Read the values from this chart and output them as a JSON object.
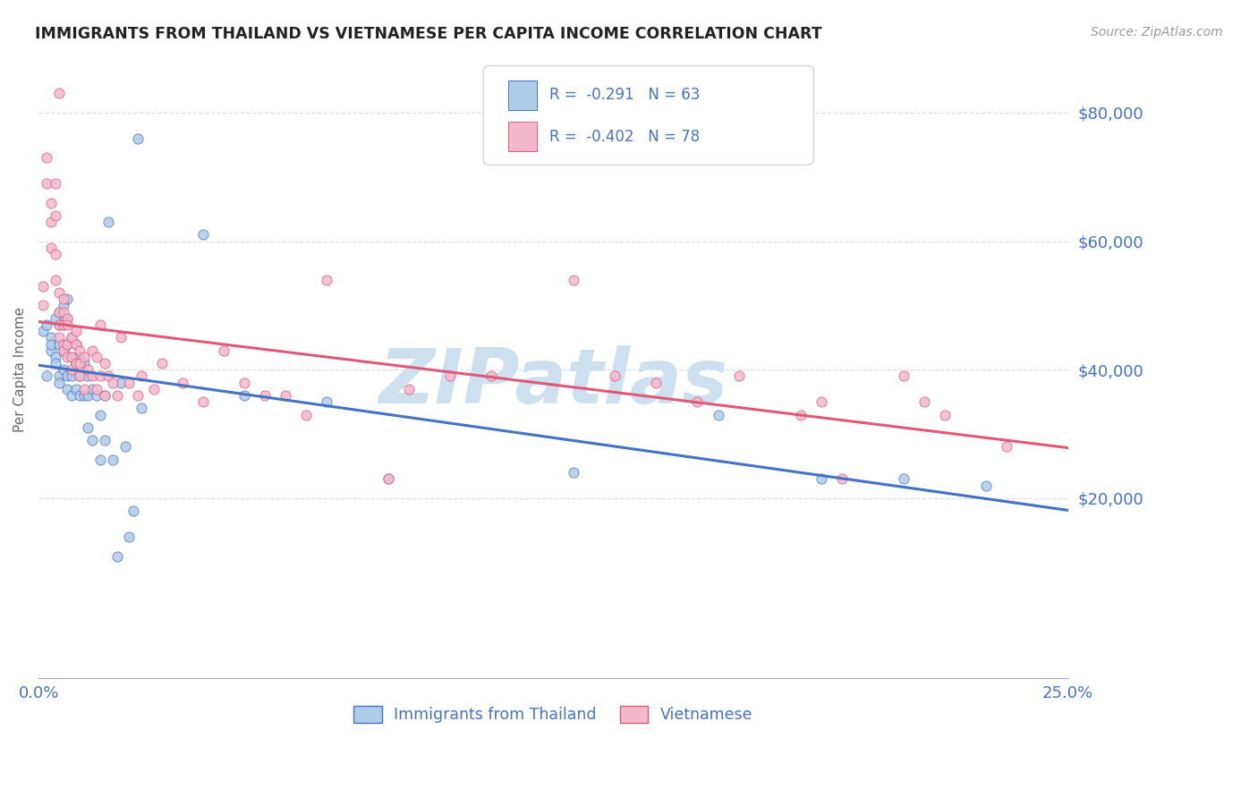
{
  "title": "IMMIGRANTS FROM THAILAND VS VIETNAMESE PER CAPITA INCOME CORRELATION CHART",
  "source": "Source: ZipAtlas.com",
  "ylabel": "Per Capita Income",
  "legend_label1": "Immigrants from Thailand",
  "legend_label2": "Vietnamese",
  "r1": "-0.291",
  "n1": "63",
  "r2": "-0.402",
  "n2": "78",
  "color_thailand_fill": "#aecce8",
  "color_thailand_edge": "#4472c4",
  "color_vietnamese_fill": "#f4b8cc",
  "color_vietnamese_edge": "#e05878",
  "color_line_thailand": "#4472c4",
  "color_line_vietnamese": "#e05878",
  "color_text_blue": "#4472c4",
  "watermark_color": "#cde0f0",
  "background_color": "#ffffff",
  "grid_color": "#dddddd",
  "xlim": [
    0.0,
    0.25
  ],
  "ylim": [
    -8000,
    88000
  ],
  "yticks": [
    20000,
    40000,
    60000,
    80000
  ],
  "ytick_labels": [
    "$20,000",
    "$40,000",
    "$60,000",
    "$80,000"
  ],
  "xtick_labels": [
    "0.0%",
    "25.0%"
  ],
  "thailand_x": [
    0.001,
    0.002,
    0.002,
    0.003,
    0.003,
    0.003,
    0.004,
    0.004,
    0.004,
    0.005,
    0.005,
    0.005,
    0.005,
    0.005,
    0.006,
    0.006,
    0.006,
    0.006,
    0.007,
    0.007,
    0.007,
    0.007,
    0.007,
    0.008,
    0.008,
    0.008,
    0.008,
    0.009,
    0.009,
    0.009,
    0.01,
    0.01,
    0.01,
    0.011,
    0.011,
    0.012,
    0.012,
    0.012,
    0.013,
    0.013,
    0.014,
    0.015,
    0.015,
    0.016,
    0.016,
    0.017,
    0.018,
    0.019,
    0.02,
    0.021,
    0.022,
    0.023,
    0.025,
    0.04,
    0.05,
    0.07,
    0.085,
    0.13,
    0.165,
    0.19,
    0.21,
    0.23,
    0.024
  ],
  "thailand_y": [
    46000,
    47000,
    39000,
    45000,
    43000,
    44000,
    48000,
    42000,
    41000,
    49000,
    47000,
    44000,
    39000,
    38000,
    50000,
    47000,
    43000,
    40000,
    51000,
    48000,
    44000,
    39000,
    37000,
    45000,
    42000,
    39000,
    36000,
    44000,
    41000,
    37000,
    42000,
    39000,
    36000,
    41000,
    36000,
    39000,
    36000,
    31000,
    37000,
    29000,
    36000,
    33000,
    26000,
    36000,
    29000,
    63000,
    26000,
    11000,
    38000,
    28000,
    14000,
    18000,
    34000,
    61000,
    36000,
    35000,
    23000,
    24000,
    33000,
    23000,
    23000,
    22000,
    76000
  ],
  "vietnamese_x": [
    0.001,
    0.001,
    0.002,
    0.002,
    0.003,
    0.003,
    0.003,
    0.004,
    0.004,
    0.004,
    0.004,
    0.005,
    0.005,
    0.005,
    0.005,
    0.005,
    0.006,
    0.006,
    0.006,
    0.006,
    0.006,
    0.007,
    0.007,
    0.007,
    0.007,
    0.008,
    0.008,
    0.008,
    0.009,
    0.009,
    0.009,
    0.01,
    0.01,
    0.01,
    0.011,
    0.011,
    0.012,
    0.013,
    0.013,
    0.014,
    0.014,
    0.015,
    0.015,
    0.016,
    0.016,
    0.017,
    0.018,
    0.019,
    0.02,
    0.022,
    0.024,
    0.025,
    0.028,
    0.03,
    0.035,
    0.04,
    0.045,
    0.05,
    0.055,
    0.065,
    0.07,
    0.085,
    0.09,
    0.1,
    0.11,
    0.13,
    0.14,
    0.15,
    0.16,
    0.17,
    0.185,
    0.195,
    0.21,
    0.215,
    0.22,
    0.235,
    0.06,
    0.19
  ],
  "vietnamese_y": [
    53000,
    50000,
    73000,
    69000,
    66000,
    63000,
    59000,
    69000,
    64000,
    58000,
    54000,
    83000,
    52000,
    49000,
    47000,
    45000,
    51000,
    49000,
    47000,
    44000,
    43000,
    48000,
    47000,
    44000,
    42000,
    45000,
    42000,
    40000,
    46000,
    44000,
    41000,
    43000,
    41000,
    39000,
    42000,
    37000,
    40000,
    43000,
    39000,
    42000,
    37000,
    47000,
    39000,
    41000,
    36000,
    39000,
    38000,
    36000,
    45000,
    38000,
    36000,
    39000,
    37000,
    41000,
    38000,
    35000,
    43000,
    38000,
    36000,
    33000,
    54000,
    23000,
    37000,
    39000,
    39000,
    54000,
    39000,
    38000,
    35000,
    39000,
    33000,
    23000,
    39000,
    35000,
    33000,
    28000,
    36000,
    35000
  ]
}
